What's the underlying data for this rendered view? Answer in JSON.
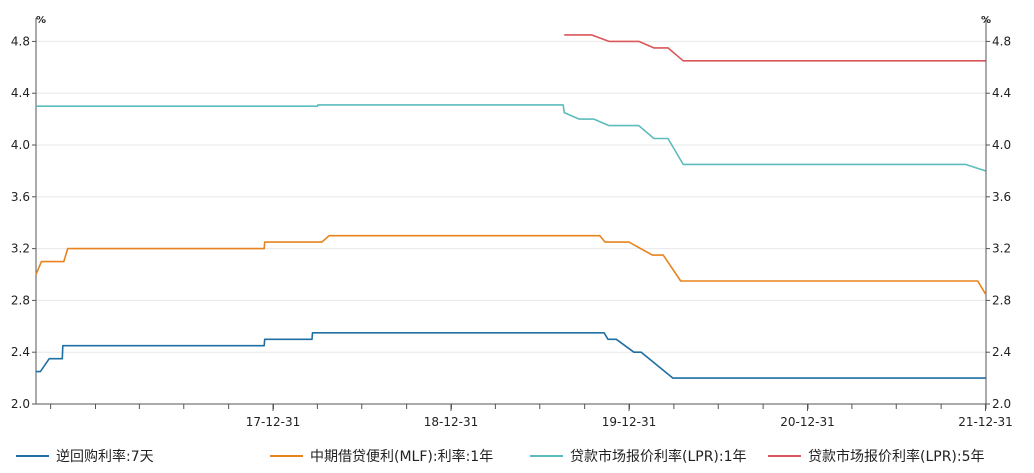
{
  "chart_data": {
    "type": "line",
    "y_unit_left": "%",
    "y_unit_right": "%",
    "ylim": [
      2.0,
      4.95
    ],
    "yticks": [
      "2.0",
      "2.4",
      "2.8",
      "3.2",
      "3.6",
      "4.0",
      "4.4",
      "4.8"
    ],
    "xlim": [
      "2016-09-01",
      "2022-01-01"
    ],
    "xticks": [
      {
        "date": "2017-12-31",
        "label": "17-12-31"
      },
      {
        "date": "2018-12-31",
        "label": "18-12-31"
      },
      {
        "date": "2019-12-31",
        "label": "19-12-31"
      },
      {
        "date": "2020-12-31",
        "label": "20-12-31"
      },
      {
        "date": "2021-12-31",
        "label": "21-12-31"
      }
    ],
    "grid": true,
    "legend_position": "bottom",
    "series": [
      {
        "name": "逆回购利率:7天",
        "color": "#1f6fa3",
        "points": [
          [
            "2016-09-01",
            2.25
          ],
          [
            "2016-09-10",
            2.25
          ],
          [
            "2016-09-28",
            2.35
          ],
          [
            "2016-10-25",
            2.35
          ],
          [
            "2016-10-26",
            2.45
          ],
          [
            "2017-12-13",
            2.45
          ],
          [
            "2017-12-14",
            2.5
          ],
          [
            "2018-03-21",
            2.5
          ],
          [
            "2018-03-22",
            2.55
          ],
          [
            "2019-11-10",
            2.55
          ],
          [
            "2019-11-18",
            2.5
          ],
          [
            "2019-12-05",
            2.5
          ],
          [
            "2020-01-10",
            2.4
          ],
          [
            "2020-01-25",
            2.4
          ],
          [
            "2020-03-30",
            2.2
          ],
          [
            "2021-12-20",
            2.2
          ],
          [
            "2021-12-31",
            2.2
          ]
        ]
      },
      {
        "name": "中期借贷便利(MLF):利率:1年",
        "color": "#e8831e",
        "points": [
          [
            "2016-09-01",
            3.0
          ],
          [
            "2016-09-12",
            3.1
          ],
          [
            "2016-10-28",
            3.1
          ],
          [
            "2016-11-05",
            3.2
          ],
          [
            "2017-12-13",
            3.2
          ],
          [
            "2017-12-14",
            3.25
          ],
          [
            "2018-04-10",
            3.25
          ],
          [
            "2018-04-25",
            3.3
          ],
          [
            "2019-11-01",
            3.3
          ],
          [
            "2019-11-12",
            3.25
          ],
          [
            "2019-12-31",
            3.25
          ],
          [
            "2020-02-17",
            3.15
          ],
          [
            "2020-03-10",
            3.15
          ],
          [
            "2020-04-15",
            2.95
          ],
          [
            "2021-12-15",
            2.95
          ],
          [
            "2021-12-31",
            2.85
          ]
        ]
      },
      {
        "name": "贷款市场报价利率(LPR):1年",
        "color": "#5dbcbe",
        "points": [
          [
            "2016-09-01",
            4.3
          ],
          [
            "2018-04-01",
            4.3
          ],
          [
            "2018-04-02",
            4.31
          ],
          [
            "2019-08-18",
            4.31
          ],
          [
            "2019-08-20",
            4.25
          ],
          [
            "2019-09-20",
            4.2
          ],
          [
            "2019-10-20",
            4.2
          ],
          [
            "2019-11-20",
            4.15
          ],
          [
            "2020-01-20",
            4.15
          ],
          [
            "2020-02-20",
            4.05
          ],
          [
            "2020-03-20",
            4.05
          ],
          [
            "2020-04-20",
            3.85
          ],
          [
            "2021-11-20",
            3.85
          ],
          [
            "2021-12-31",
            3.8
          ]
        ]
      },
      {
        "name": "贷款市场报价利率(LPR):5年",
        "color": "#d9565a",
        "points": [
          [
            "2019-08-20",
            4.85
          ],
          [
            "2019-10-15",
            4.85
          ],
          [
            "2019-11-20",
            4.8
          ],
          [
            "2020-01-20",
            4.8
          ],
          [
            "2020-02-20",
            4.75
          ],
          [
            "2020-03-20",
            4.75
          ],
          [
            "2020-04-20",
            4.65
          ],
          [
            "2021-12-31",
            4.65
          ]
        ]
      }
    ]
  }
}
